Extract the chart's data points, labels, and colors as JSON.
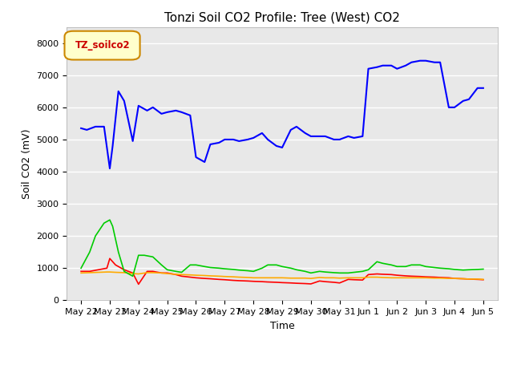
{
  "title": "Tonzi Soil CO2 Profile: Tree (West) CO2",
  "xlabel": "Time",
  "ylabel": "Soil CO2 (mV)",
  "ylim": [
    0,
    8500
  ],
  "yticks": [
    0,
    1000,
    2000,
    3000,
    4000,
    5000,
    6000,
    7000,
    8000
  ],
  "x_labels": [
    "May 22",
    "May 23",
    "May 24",
    "May 25",
    "May 26",
    "May 27",
    "May 28",
    "May 29",
    "May 30",
    "May 31",
    "Jun 1",
    "Jun 2",
    "Jun 3",
    "Jun 4",
    "Jun 5"
  ],
  "x_values": [
    0,
    1,
    2,
    3,
    4,
    5,
    6,
    7,
    8,
    9,
    10,
    11,
    12,
    13,
    14
  ],
  "series_2cm": {
    "color": "#ff0000",
    "x": [
      0,
      0.3,
      0.6,
      0.9,
      1.0,
      1.2,
      1.5,
      1.8,
      2.0,
      2.3,
      2.5,
      2.8,
      3.0,
      3.3,
      3.5,
      3.8,
      4.0,
      4.3,
      4.5,
      4.8,
      5.0,
      5.3,
      5.5,
      5.8,
      6.0,
      6.3,
      6.5,
      6.8,
      7.0,
      7.3,
      7.5,
      7.8,
      8.0,
      8.3,
      8.5,
      8.8,
      9.0,
      9.3,
      9.5,
      9.8,
      10.0,
      10.3,
      10.5,
      10.8,
      11.0,
      11.3,
      11.5,
      11.8,
      12.0,
      12.3,
      12.5,
      12.8,
      13.0,
      13.3,
      13.5,
      13.8,
      14.0
    ],
    "y": [
      900,
      900,
      950,
      1000,
      1300,
      1100,
      950,
      850,
      500,
      900,
      900,
      850,
      850,
      800,
      750,
      720,
      700,
      680,
      670,
      650,
      640,
      620,
      610,
      600,
      590,
      580,
      570,
      560,
      550,
      540,
      530,
      520,
      510,
      600,
      580,
      560,
      540,
      650,
      640,
      630,
      800,
      820,
      810,
      800,
      780,
      760,
      750,
      740,
      730,
      720,
      710,
      700,
      680,
      670,
      660,
      650,
      640
    ]
  },
  "series_4cm": {
    "color": "#ffaa00",
    "x": [
      0,
      0.3,
      0.6,
      0.9,
      1.0,
      1.2,
      1.5,
      1.8,
      2.0,
      2.3,
      2.5,
      2.8,
      3.0,
      3.3,
      3.5,
      3.8,
      4.0,
      4.3,
      4.5,
      4.8,
      5.0,
      5.3,
      5.5,
      5.8,
      6.0,
      6.3,
      6.5,
      6.8,
      7.0,
      7.3,
      7.5,
      7.8,
      8.0,
      8.3,
      8.5,
      8.8,
      9.0,
      9.3,
      9.5,
      9.8,
      10.0,
      10.3,
      10.5,
      10.8,
      11.0,
      11.3,
      11.5,
      11.8,
      12.0,
      12.3,
      12.5,
      12.8,
      13.0,
      13.3,
      13.5,
      13.8,
      14.0
    ],
    "y": [
      850,
      860,
      870,
      880,
      880,
      870,
      860,
      830,
      820,
      860,
      860,
      850,
      830,
      810,
      800,
      790,
      780,
      770,
      760,
      750,
      740,
      730,
      720,
      710,
      700,
      700,
      700,
      700,
      700,
      690,
      690,
      690,
      680,
      710,
      700,
      700,
      690,
      700,
      700,
      700,
      720,
      720,
      710,
      700,
      700,
      700,
      700,
      700,
      700,
      690,
      690,
      680,
      680,
      670,
      660,
      660,
      650
    ]
  },
  "series_8cm": {
    "color": "#00cc00",
    "x": [
      0,
      0.3,
      0.5,
      0.8,
      1.0,
      1.1,
      1.3,
      1.5,
      1.8,
      2.0,
      2.2,
      2.5,
      2.8,
      3.0,
      3.3,
      3.5,
      3.8,
      4.0,
      4.3,
      4.5,
      4.8,
      5.0,
      5.3,
      5.5,
      5.8,
      6.0,
      6.3,
      6.5,
      6.8,
      7.0,
      7.3,
      7.5,
      7.8,
      8.0,
      8.3,
      8.5,
      8.8,
      9.0,
      9.3,
      9.5,
      9.8,
      10.0,
      10.3,
      10.5,
      10.8,
      11.0,
      11.3,
      11.5,
      11.8,
      12.0,
      12.3,
      12.5,
      12.8,
      13.0,
      13.3,
      13.5,
      13.8,
      14.0
    ],
    "y": [
      1000,
      1500,
      2000,
      2400,
      2500,
      2300,
      1500,
      900,
      750,
      1400,
      1400,
      1350,
      1100,
      950,
      900,
      870,
      1100,
      1100,
      1050,
      1020,
      1000,
      980,
      960,
      940,
      920,
      900,
      1000,
      1100,
      1100,
      1050,
      1000,
      950,
      900,
      850,
      900,
      880,
      860,
      850,
      850,
      870,
      900,
      950,
      1200,
      1150,
      1100,
      1050,
      1050,
      1100,
      1100,
      1050,
      1020,
      1000,
      980,
      960,
      940,
      950,
      960,
      970
    ]
  },
  "series_16cm": {
    "color": "#0000ff",
    "x": [
      0,
      0.2,
      0.5,
      0.8,
      1.0,
      1.1,
      1.3,
      1.5,
      1.8,
      2.0,
      2.3,
      2.5,
      2.8,
      3.0,
      3.3,
      3.5,
      3.8,
      4.0,
      4.3,
      4.5,
      4.8,
      5.0,
      5.3,
      5.5,
      5.8,
      6.0,
      6.3,
      6.5,
      6.8,
      7.0,
      7.3,
      7.5,
      7.8,
      8.0,
      8.3,
      8.5,
      8.8,
      9.0,
      9.3,
      9.5,
      9.8,
      10.0,
      10.3,
      10.5,
      10.8,
      11.0,
      11.3,
      11.5,
      11.8,
      12.0,
      12.3,
      12.5,
      12.8,
      13.0,
      13.3,
      13.5,
      13.8,
      14.0
    ],
    "y": [
      5350,
      5300,
      5400,
      5400,
      4100,
      4800,
      6500,
      6200,
      4950,
      6050,
      5900,
      6000,
      5800,
      5850,
      5900,
      5850,
      5750,
      4450,
      4300,
      4850,
      4900,
      5000,
      5000,
      4950,
      5000,
      5050,
      5200,
      5000,
      4800,
      4750,
      5300,
      5400,
      5200,
      5100,
      5100,
      5100,
      5000,
      5000,
      5100,
      5050,
      5100,
      7200,
      7250,
      7300,
      7300,
      7200,
      7300,
      7400,
      7450,
      7450,
      7400,
      7400,
      6000,
      6000,
      6200,
      6250,
      6600,
      6600
    ]
  },
  "background_color": "#e8e8e8",
  "fig_background": "#ffffff",
  "legend_label_box": "TZ_soilco2",
  "legend_box_facecolor": "#ffffcc",
  "legend_box_edgecolor": "#cc8800",
  "legend_text_color": "#cc0000",
  "title_fontsize": 11,
  "axis_label_fontsize": 9,
  "tick_fontsize": 8
}
